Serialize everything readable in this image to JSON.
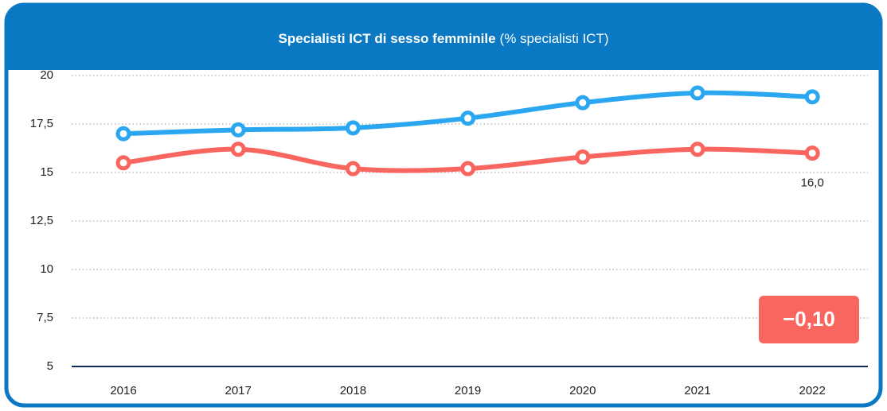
{
  "chart_data": {
    "type": "line",
    "title": "Specialisti ICT di sesso femminile",
    "subtitle": "(% specialisti ICT)",
    "categories": [
      "2016",
      "2017",
      "2018",
      "2019",
      "2020",
      "2021",
      "2022"
    ],
    "series": [
      {
        "color": "#2aa7f0",
        "values": [
          17.0,
          17.2,
          17.3,
          17.8,
          18.6,
          19.1,
          18.9
        ]
      },
      {
        "color": "#f9655f",
        "values": [
          15.5,
          16.2,
          15.2,
          15.2,
          15.8,
          16.2,
          16.0
        ],
        "value_labels": [
          null,
          null,
          null,
          null,
          null,
          null,
          "16,0"
        ]
      }
    ],
    "annotation": "−0,10",
    "annotation_color": "#f9655f",
    "ylim": [
      5,
      20
    ],
    "yticks": [
      5,
      {
        "value": 7.5,
        "label": "7,5"
      },
      10,
      {
        "value": 12.5,
        "label": "12,5"
      },
      15,
      {
        "value": 17.5,
        "label": "17,5"
      },
      20
    ],
    "grid": true
  }
}
